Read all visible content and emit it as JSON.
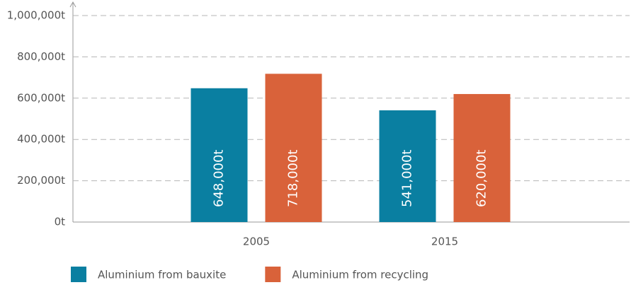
{
  "chart_data": {
    "type": "bar",
    "categories": [
      "2005",
      "2015"
    ],
    "series": [
      {
        "name": "Aluminium from bauxite",
        "color": "#0a7fa1",
        "values": [
          648000,
          541000
        ],
        "value_labels": [
          "648,000t",
          "541,000t"
        ]
      },
      {
        "name": "Aluminium from recycling",
        "color": "#d9623a",
        "values": [
          718000,
          620000
        ],
        "value_labels": [
          "718,000t",
          "620,000t"
        ]
      }
    ],
    "ylim": [
      0,
      1000000
    ],
    "yticks": [
      {
        "value": 0,
        "label": "0t"
      },
      {
        "value": 200000,
        "label": "200,000t"
      },
      {
        "value": 400000,
        "label": "400,000t"
      },
      {
        "value": 600000,
        "label": "600,000t"
      },
      {
        "value": 800000,
        "label": "800,000t"
      },
      {
        "value": 1000000,
        "label": "1,000,000t"
      }
    ],
    "grid": true
  }
}
